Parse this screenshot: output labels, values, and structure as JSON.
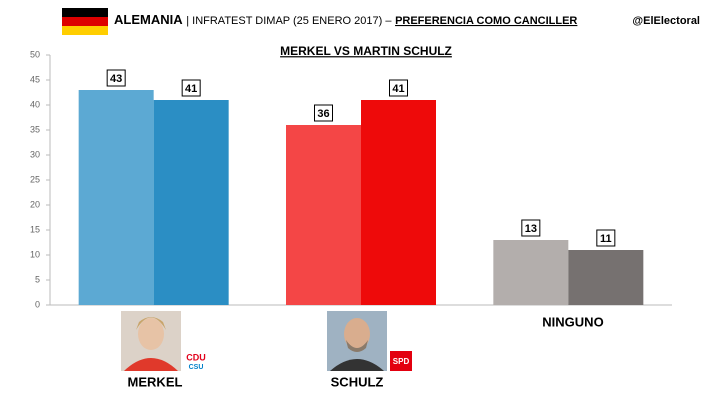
{
  "chart_data": {
    "type": "bar",
    "title": "ALEMANIA",
    "title_detail": "| INFRATEST DIMAP (25 ENERO 2017) –",
    "title_topic": "PREFERENCIA COMO CANCILLER",
    "source": "@ElElectoral",
    "subtitle": "MERKEL VS MARTIN SCHULZ",
    "categories": [
      "MERKEL",
      "SCHULZ",
      "NINGUNO"
    ],
    "series": [
      {
        "colors": [
          "#5ca9d3",
          "#f44646",
          "#b3aeac"
        ],
        "values": [
          43,
          36,
          13
        ]
      },
      {
        "colors": [
          "#2b8ec4",
          "#ee0a0a",
          "#767170"
        ],
        "values": [
          41,
          41,
          11
        ]
      }
    ],
    "logos": [
      "CDU",
      "CSU",
      "SPD"
    ],
    "ylim": [
      0,
      50
    ],
    "yticks": [
      0,
      5,
      10,
      15,
      20,
      25,
      30,
      35,
      40,
      45,
      50
    ],
    "grid": false
  }
}
